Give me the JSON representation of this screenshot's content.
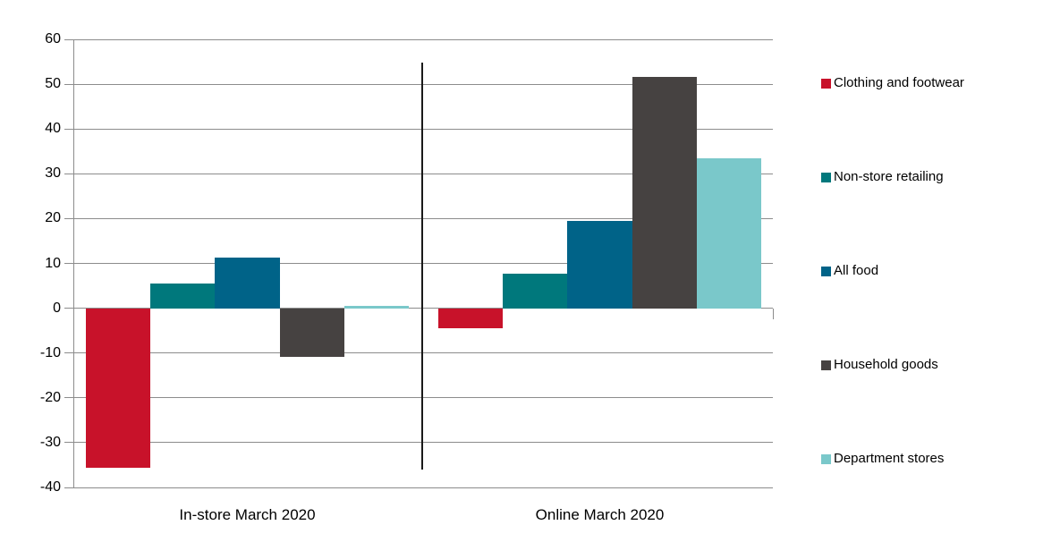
{
  "chart_data": {
    "type": "bar",
    "title": "",
    "categories": [
      "In-store March 2020",
      "Online March 2020"
    ],
    "series": [
      {
        "name": "Clothing and footwear",
        "color": "#c8122a",
        "values": [
          -35.7,
          -4.4
        ]
      },
      {
        "name": "Non-store retailing",
        "color": "#00787c",
        "values": [
          5.6,
          7.8
        ]
      },
      {
        "name": "All food",
        "color": "#006388",
        "values": [
          11.2,
          19.5
        ]
      },
      {
        "name": "Household goods",
        "color": "#464241",
        "values": [
          -10.8,
          51.6
        ]
      },
      {
        "name": "Department stores",
        "color": "#7ac8ca",
        "values": [
          0.5,
          33.5
        ]
      }
    ],
    "y_axis": {
      "min": -40,
      "max": 60,
      "step": 10,
      "tick_labels": [
        "60",
        "50",
        "40",
        "30",
        "20",
        "10",
        "0",
        "-10",
        "-20",
        "-30",
        "-40"
      ]
    },
    "grid": true,
    "legend_position": "right",
    "separator_between_groups": true,
    "colors": {
      "gridline": "#8c8c8c",
      "axis": "#8c8c8c",
      "separator": "#1a1a1a",
      "text": "#000000",
      "background": "#ffffff"
    }
  }
}
